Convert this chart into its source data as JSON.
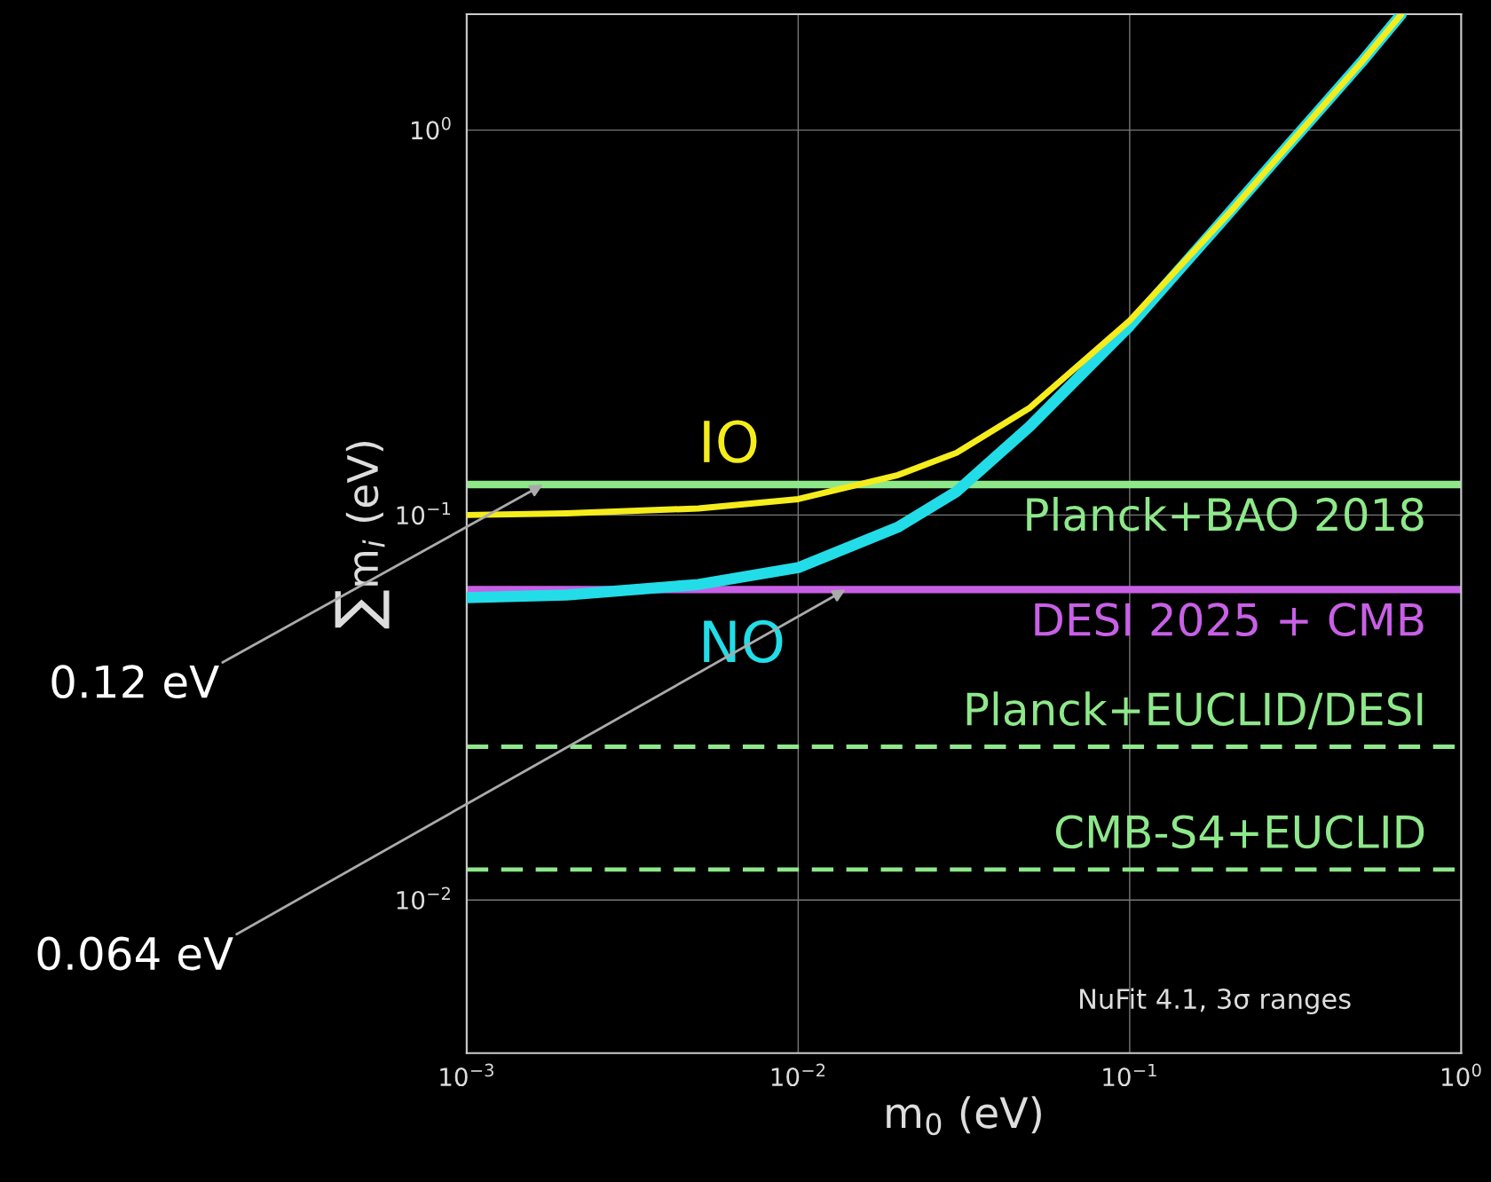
{
  "chart_data": {
    "type": "line",
    "xlabel": "m$_{0}$ (eV)",
    "ylabel": "∑m$_{i}$ (eV)",
    "log": "xy",
    "grid": true,
    "legend": false,
    "line_style": "solid",
    "marker": "none",
    "xlim": [
      0.001,
      1
    ],
    "ylim": [
      0.004,
      2
    ],
    "xticks": [
      {
        "value": 0.001,
        "label": "10$^{−3}$"
      },
      {
        "value": 0.01,
        "label": "10$^{−2}$"
      },
      {
        "value": 0.1,
        "label": "10$^{−1}$"
      },
      {
        "value": 1,
        "label": "10$^{0}$"
      }
    ],
    "yticks": [
      {
        "value": 0.01,
        "label": "10$^{−2}$"
      },
      {
        "value": 0.1,
        "label": "10$^{−1}$"
      },
      {
        "value": 1,
        "label": "10$^{0}$"
      }
    ],
    "x": [
      0.001,
      0.002,
      0.005,
      0.01,
      0.02,
      0.03,
      0.05,
      0.1,
      0.2,
      0.3,
      0.5,
      0.66
    ],
    "series": [
      {
        "name": "IO",
        "color": "#f5ec1c",
        "values": [
          0.1,
          0.101,
          0.104,
          0.11,
          0.127,
          0.145,
          0.19,
          0.32,
          0.61,
          0.91,
          1.5,
          2.0
        ]
      },
      {
        "name": "NO",
        "color": "#22dde8",
        "values": [
          0.061,
          0.062,
          0.066,
          0.073,
          0.093,
          0.115,
          0.17,
          0.31,
          0.61,
          0.91,
          1.5,
          2.0
        ]
      }
    ],
    "ref_lines": [
      {
        "axis": "y",
        "value": 0.12,
        "label": "Planck+BAO 2018",
        "color": "#8ee88a",
        "line_style": "solid"
      },
      {
        "axis": "y",
        "value": 0.064,
        "label": "DESI 2025 + CMB",
        "color": "#c860e6",
        "line_style": "solid"
      },
      {
        "axis": "y",
        "value": 0.025,
        "label": "Planck+EUCLID/DESI",
        "color": "#8ee88a",
        "line_style": "dashed"
      },
      {
        "axis": "y",
        "value": 0.012,
        "label": "CMB-S4+EUCLID",
        "color": "#8ee88a",
        "line_style": "dashed"
      }
    ],
    "annotations": [
      {
        "text": "0.12 eV",
        "x": 0.0017,
        "y": 0.12
      },
      {
        "text": "0.064 eV",
        "x": 0.0139,
        "y": 0.064
      },
      "NuFit 4.1, 3σ ranges"
    ]
  }
}
